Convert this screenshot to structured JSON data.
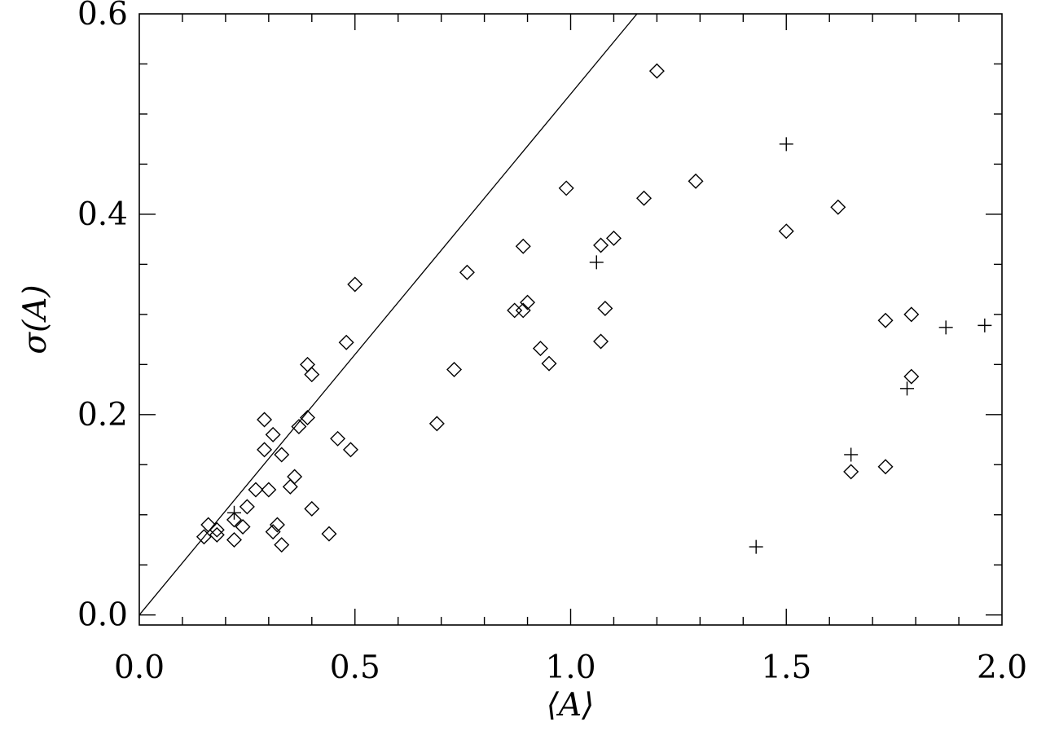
{
  "chart_data": {
    "type": "scatter",
    "xlabel": "⟨A⟩",
    "ylabel": "σ(A)",
    "xlim": [
      0.0,
      2.0
    ],
    "ylim": [
      -0.01,
      0.6
    ],
    "x_ticks": [
      "0.0",
      "0.5",
      "1.0",
      "1.5",
      "2.0"
    ],
    "x_tick_values": [
      0.0,
      0.5,
      1.0,
      1.5,
      2.0
    ],
    "y_ticks": [
      "0.0",
      "0.2",
      "0.4",
      "0.6"
    ],
    "y_tick_values": [
      0.0,
      0.2,
      0.4,
      0.6
    ],
    "y_minor_tick_values": [
      0.05,
      0.1,
      0.15,
      0.25,
      0.3,
      0.35,
      0.45,
      0.5,
      0.55
    ],
    "x_minor_tick_values": [
      0.1,
      0.2,
      0.3,
      0.4,
      0.6,
      0.7,
      0.8,
      0.9,
      1.1,
      1.2,
      1.3,
      1.4,
      1.6,
      1.7,
      1.8,
      1.9
    ],
    "grid": false,
    "reference_line": {
      "slope": 0.52,
      "intercept": 0.0,
      "style": "solid"
    },
    "series": [
      {
        "marker": "diamond",
        "points": [
          [
            0.15,
            0.078
          ],
          [
            0.16,
            0.09
          ],
          [
            0.18,
            0.08
          ],
          [
            0.18,
            0.085
          ],
          [
            0.22,
            0.095
          ],
          [
            0.22,
            0.075
          ],
          [
            0.24,
            0.088
          ],
          [
            0.25,
            0.108
          ],
          [
            0.27,
            0.125
          ],
          [
            0.3,
            0.125
          ],
          [
            0.29,
            0.165
          ],
          [
            0.29,
            0.195
          ],
          [
            0.31,
            0.18
          ],
          [
            0.31,
            0.083
          ],
          [
            0.32,
            0.09
          ],
          [
            0.33,
            0.07
          ],
          [
            0.33,
            0.16
          ],
          [
            0.35,
            0.128
          ],
          [
            0.37,
            0.188
          ],
          [
            0.36,
            0.138
          ],
          [
            0.39,
            0.25
          ],
          [
            0.39,
            0.197
          ],
          [
            0.4,
            0.24
          ],
          [
            0.4,
            0.106
          ],
          [
            0.44,
            0.081
          ],
          [
            0.46,
            0.176
          ],
          [
            0.48,
            0.272
          ],
          [
            0.49,
            0.165
          ],
          [
            0.5,
            0.33
          ],
          [
            0.69,
            0.191
          ],
          [
            0.73,
            0.245
          ],
          [
            0.76,
            0.342
          ],
          [
            0.87,
            0.304
          ],
          [
            0.89,
            0.304
          ],
          [
            0.89,
            0.368
          ],
          [
            0.9,
            0.312
          ],
          [
            0.93,
            0.266
          ],
          [
            0.95,
            0.251
          ],
          [
            0.99,
            0.426
          ],
          [
            1.07,
            0.273
          ],
          [
            1.07,
            0.369
          ],
          [
            1.08,
            0.306
          ],
          [
            1.1,
            0.376
          ],
          [
            1.17,
            0.416
          ],
          [
            1.2,
            0.543
          ],
          [
            1.29,
            0.433
          ],
          [
            1.5,
            0.383
          ],
          [
            1.62,
            0.407
          ],
          [
            1.65,
            0.143
          ],
          [
            1.73,
            0.148
          ],
          [
            1.73,
            0.294
          ],
          [
            1.79,
            0.3
          ],
          [
            1.79,
            0.238
          ]
        ]
      },
      {
        "marker": "plus",
        "points": [
          [
            0.22,
            0.102
          ],
          [
            1.06,
            0.352
          ],
          [
            1.43,
            0.068
          ],
          [
            1.5,
            0.47
          ],
          [
            1.65,
            0.16
          ],
          [
            1.78,
            0.226
          ],
          [
            1.87,
            0.287
          ],
          [
            1.96,
            0.289
          ]
        ]
      }
    ]
  }
}
